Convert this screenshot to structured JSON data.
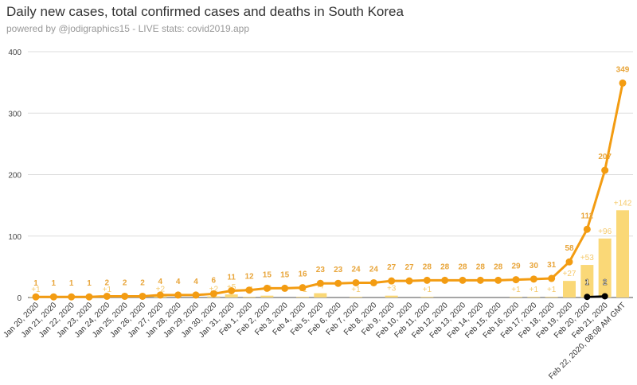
{
  "chart_data": {
    "type": "line",
    "title": "Daily new cases, total confirmed cases and deaths in South Korea",
    "subtitle": "powered by @jodigraphics15 - LIVE stats: covid2019.app",
    "ylim": [
      0,
      400
    ],
    "yticks": [
      "0",
      "100",
      "200",
      "300",
      "400"
    ],
    "grid": true,
    "categories": [
      "Jan 20, 2020",
      "Jan 21, 2020",
      "Jan 22, 2020",
      "Jan 23, 2020",
      "Jan 24, 2020",
      "Jan 25, 2020",
      "Jan 26, 2020",
      "Jan 27, 2020",
      "Jan 28, 2020",
      "Jan 29, 2020",
      "Jan 30, 2020",
      "Jan 31, 2020",
      "Feb 1, 2020",
      "Feb 2, 2020",
      "Feb 3, 2020",
      "Feb 4, 2020",
      "Feb 5, 2020",
      "Feb 6, 2020",
      "Feb 7, 2020",
      "Feb 8, 2020",
      "Feb 9, 2020",
      "Feb 10, 2020",
      "Feb 11, 2020",
      "Feb 12, 2020",
      "Feb 13, 2020",
      "Feb 14, 2020",
      "Feb 15, 2020",
      "Feb 16, 2020",
      "Feb 17, 2020",
      "Feb 18, 2020",
      "Feb 19, 2020",
      "Feb 20, 2020",
      "Feb 21, 2020",
      "Feb 22, 2020, 08:08 AM GMT"
    ],
    "series": [
      {
        "name": "Total confirmed cases",
        "type": "line",
        "color": "#f39c12",
        "values": [
          1,
          1,
          1,
          1,
          2,
          2,
          2,
          4,
          4,
          4,
          6,
          11,
          12,
          15,
          15,
          16,
          23,
          23,
          24,
          24,
          27,
          27,
          28,
          28,
          28,
          28,
          28,
          29,
          30,
          31,
          58,
          111,
          207,
          349
        ]
      },
      {
        "name": "Daily new cases",
        "type": "bar",
        "color": "#fad877",
        "values": [
          1,
          0,
          0,
          0,
          1,
          0,
          0,
          2,
          0,
          0,
          2,
          5,
          1,
          3,
          0,
          1,
          7,
          0,
          1,
          0,
          3,
          0,
          1,
          0,
          0,
          0,
          0,
          1,
          1,
          1,
          27,
          53,
          96,
          142
        ]
      },
      {
        "name": "Deaths",
        "type": "line",
        "color": "#000000",
        "values": [
          null,
          null,
          null,
          null,
          null,
          null,
          null,
          null,
          null,
          null,
          null,
          null,
          null,
          null,
          null,
          null,
          null,
          null,
          null,
          null,
          null,
          null,
          null,
          null,
          null,
          null,
          null,
          null,
          null,
          null,
          null,
          1,
          2,
          null
        ]
      }
    ]
  }
}
